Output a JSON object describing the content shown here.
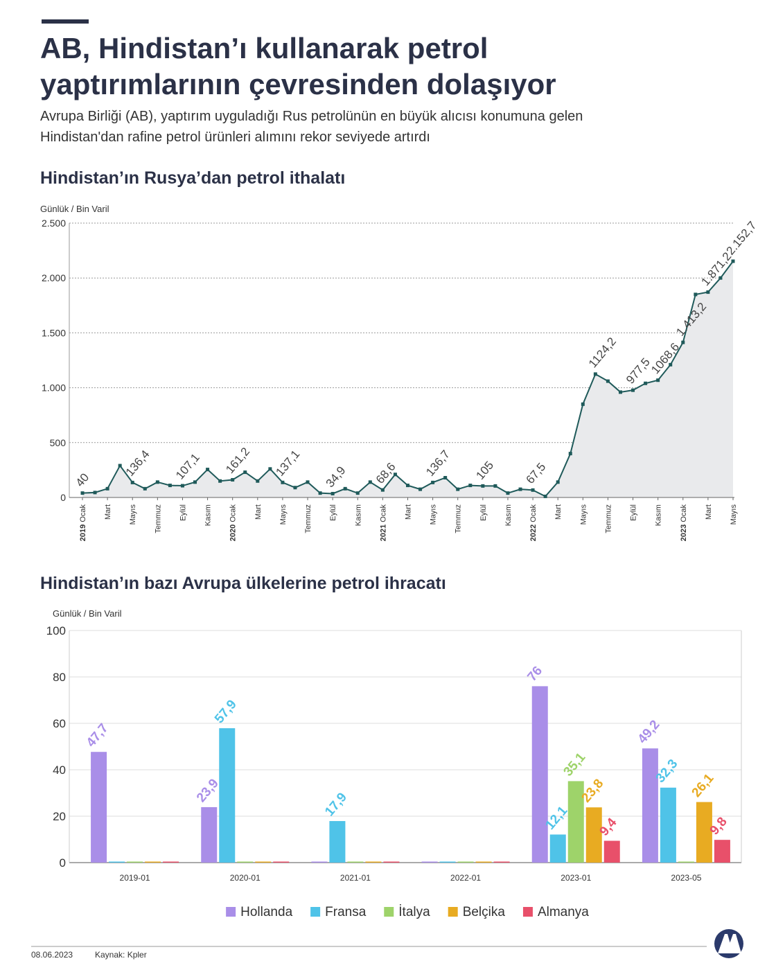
{
  "header": {
    "title": "AB, Hindistan’ı kullanarak petrol yaptırımlarının çevresinden dolaşıyor",
    "subtitle": "Avrupa Birliği (AB), yaptırım uyguladığı Rus petrolünün en büyük alıcısı konumuna gelen Hindistan'dan rafine petrol ürünleri alımını rekor seviyede artırdı"
  },
  "chart_data": [
    {
      "type": "line",
      "title": "Hindistan’ın Rusya’dan petrol ithalatı",
      "y_label": "Günlük / Bin Varil",
      "color": "#1f5a5a",
      "area": true,
      "grid": true,
      "categories": [
        "2019 Ocak",
        null,
        "Mart",
        null,
        "Mayıs",
        null,
        "Temmuz",
        null,
        "Eylül",
        null,
        "Kasım",
        null,
        "2020 Ocak",
        null,
        "Mart",
        null,
        "Mayıs",
        null,
        "Temmuz",
        null,
        "Eylül",
        null,
        "Kasım",
        null,
        "2021 Ocak",
        null,
        "Mart",
        null,
        "Mayıs",
        null,
        "Temmuz",
        null,
        "Eylül",
        null,
        "Kasım",
        null,
        "2022 Ocak",
        null,
        "Mart",
        null,
        "Mayıs",
        null,
        "Temmuz",
        null,
        "Eylül",
        null,
        "Kasım",
        null,
        "2023 Ocak",
        null,
        "Mart",
        null,
        "Mayıs"
      ],
      "values": [
        40,
        45,
        80,
        290,
        136.4,
        80,
        140,
        110,
        107.1,
        140,
        255,
        150,
        161.2,
        230,
        150,
        260,
        137.1,
        90,
        140,
        40,
        34.9,
        80,
        40,
        140,
        68.6,
        210,
        110,
        75,
        136.7,
        180,
        75,
        110,
        105,
        105,
        40,
        75,
        67.5,
        10,
        140,
        400,
        850,
        1124.2,
        1060,
        960,
        977.5,
        1040,
        1068.6,
        1210,
        1413.2,
        1850,
        1871.2,
        2000,
        2152.7
      ],
      "value_labels": [
        "40",
        null,
        null,
        null,
        "136,4",
        null,
        null,
        null,
        "107,1",
        null,
        null,
        null,
        "161,2",
        null,
        null,
        null,
        "137,1",
        null,
        null,
        null,
        "34,9",
        null,
        null,
        null,
        "68,6",
        null,
        null,
        null,
        "136,7",
        null,
        null,
        null,
        "105",
        null,
        null,
        null,
        "67,5",
        null,
        null,
        null,
        null,
        "1124,2",
        null,
        null,
        "977,5",
        null,
        "1068,6",
        null,
        "1.413,2",
        null,
        "1.871,2",
        null,
        "2.152,7"
      ],
      "ylim": [
        0,
        2500
      ],
      "yticks": [
        0,
        500,
        {
          "value": 1000,
          "label": "1.000"
        },
        {
          "value": 1500,
          "label": "1.500"
        },
        {
          "value": 2000,
          "label": "2.000"
        },
        {
          "value": 2500,
          "label": "2.500"
        }
      ]
    },
    {
      "type": "bar",
      "title": "Hindistan’ın bazı Avrupa ülkelerine petrol ihracatı",
      "y_label": "Günlük / Bin Varil",
      "grid": true,
      "legend": "bottom",
      "categories": [
        "2019-01",
        "2020-01",
        "2021-01",
        "2022-01",
        "2023-01",
        "2023-05"
      ],
      "series": [
        {
          "name": "Hollanda",
          "color": "#a98ee8",
          "values": [
            47.7,
            23.9,
            0,
            0,
            76,
            49.2
          ],
          "value_labels": [
            "47,7",
            "23,9",
            null,
            null,
            "76",
            "49,2"
          ]
        },
        {
          "name": "Fransa",
          "color": "#4fc3e8",
          "values": [
            0,
            57.9,
            17.9,
            0,
            12.1,
            32.3
          ],
          "value_labels": [
            null,
            "57,9",
            "17,9",
            null,
            "12,1",
            "32,3"
          ]
        },
        {
          "name": "İtalya",
          "color": "#9ed36a",
          "values": [
            0,
            0,
            0,
            0,
            35.1,
            0
          ],
          "value_labels": [
            null,
            null,
            null,
            null,
            "35,1",
            null
          ]
        },
        {
          "name": "Belçika",
          "color": "#e8ab22",
          "values": [
            0,
            0,
            0,
            0,
            23.8,
            26.1
          ],
          "value_labels": [
            null,
            null,
            null,
            null,
            "23,8",
            "26,1"
          ]
        },
        {
          "name": "Almanya",
          "color": "#e8506a",
          "values": [
            0,
            0,
            0,
            0,
            9.4,
            9.8
          ],
          "value_labels": [
            null,
            null,
            null,
            null,
            "9,4",
            "9,8"
          ]
        }
      ],
      "ylim": [
        0,
        100
      ],
      "yticks": [
        0,
        20,
        40,
        60,
        80,
        100
      ]
    }
  ],
  "footer": {
    "date": "08.06.2023",
    "source": "Kaynak: Kpler"
  }
}
